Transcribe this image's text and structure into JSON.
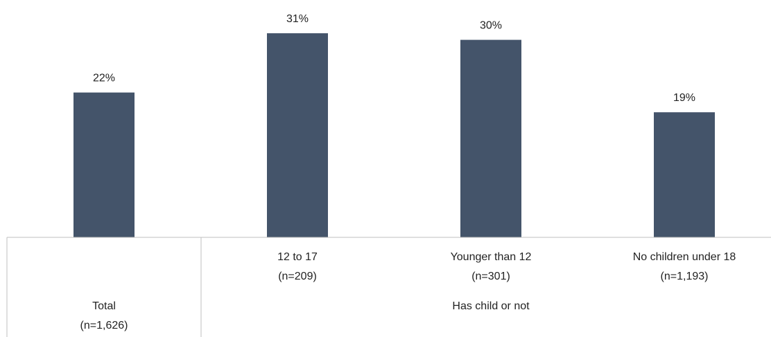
{
  "chart_data": {
    "type": "bar",
    "categories": [
      {
        "label": "Total",
        "n": "(n=1,626)"
      },
      {
        "label": "12 to 17",
        "n": "(n=209)"
      },
      {
        "label": "Younger than 12",
        "n": "(n=301)"
      },
      {
        "label": "No children under 18",
        "n": "(n=1,193)"
      }
    ],
    "values": [
      22,
      31,
      30,
      19
    ],
    "value_labels": [
      "22%",
      "31%",
      "30%",
      "19%"
    ],
    "group_label": "Has child or not",
    "ylim": [
      0,
      35
    ],
    "bar_color": "#44546a",
    "grid": false
  }
}
